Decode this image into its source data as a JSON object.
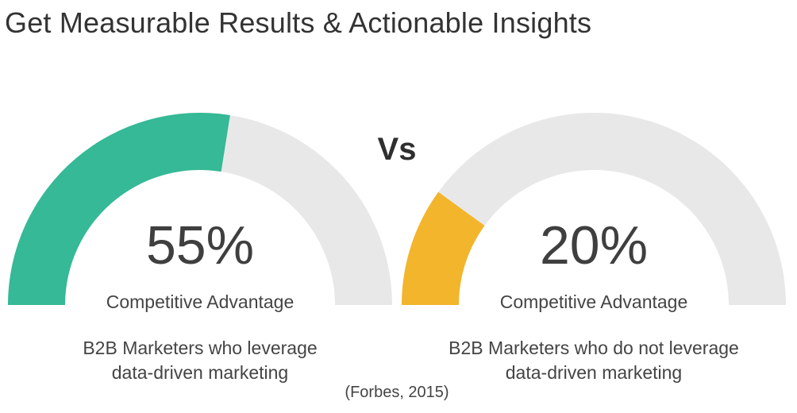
{
  "page": {
    "title": "Get Measurable Results & Actionable Insights"
  },
  "vs_label": "Vs",
  "source": "(Forbes, 2015)",
  "colors": {
    "track": "#e8e8e8",
    "green": "#35b996",
    "yellow": "#f3b52b"
  },
  "chart_data": [
    {
      "type": "gauge",
      "value": 55,
      "max": 100,
      "value_label": "55%",
      "caption": "Competitive Advantage",
      "description": [
        "B2B Marketers who leverage",
        "data-driven marketing"
      ],
      "fill_color": "#35b996"
    },
    {
      "type": "gauge",
      "value": 20,
      "max": 100,
      "value_label": "20%",
      "caption": "Competitive Advantage",
      "description": [
        "B2B Marketers who do not leverage",
        "data-driven marketing"
      ],
      "fill_color": "#f3b52b"
    }
  ]
}
